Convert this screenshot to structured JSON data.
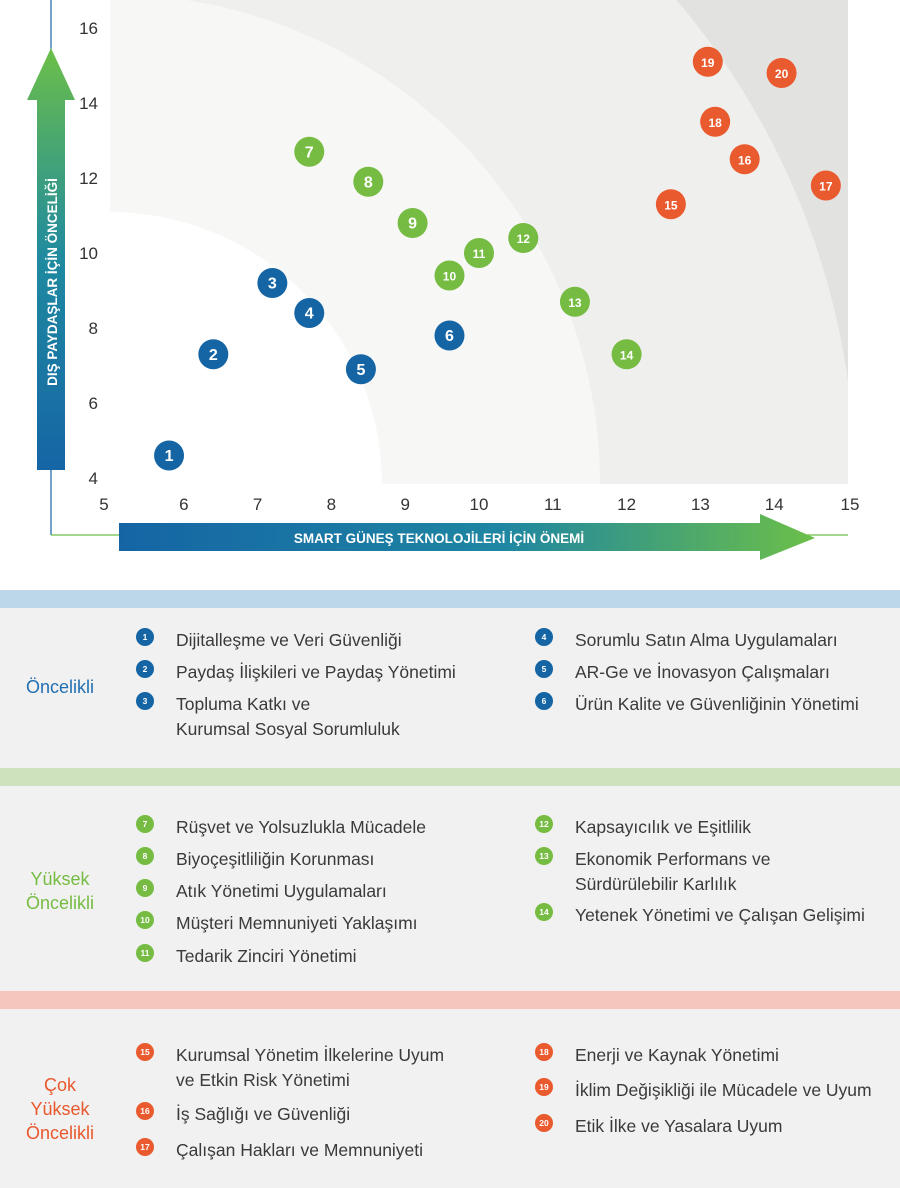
{
  "chart_data": {
    "type": "scatter",
    "xlabel": "SMART GÜNEŞ TEKNOLOJİLERİ İÇİN ÖNEMİ",
    "ylabel": "DIŞ PAYDAŞLAR İÇİN ÖNCELİĞİ",
    "xlim": [
      5,
      15
    ],
    "ylim": [
      4,
      16
    ],
    "x_ticks": [
      "5",
      "6",
      "7",
      "8",
      "9",
      "10",
      "11",
      "12",
      "13",
      "14",
      "15"
    ],
    "y_ticks": [
      "4",
      "6",
      "8",
      "10",
      "12",
      "14",
      "16"
    ],
    "points": [
      {
        "id": "1",
        "x": 5.8,
        "y": 4.6,
        "group": "oncelikli"
      },
      {
        "id": "2",
        "x": 6.4,
        "y": 7.3,
        "group": "oncelikli"
      },
      {
        "id": "3",
        "x": 7.2,
        "y": 9.2,
        "group": "oncelikli"
      },
      {
        "id": "4",
        "x": 7.7,
        "y": 8.4,
        "group": "oncelikli"
      },
      {
        "id": "5",
        "x": 8.4,
        "y": 6.9,
        "group": "oncelikli"
      },
      {
        "id": "6",
        "x": 9.6,
        "y": 7.8,
        "group": "oncelikli"
      },
      {
        "id": "7",
        "x": 7.7,
        "y": 12.7,
        "group": "yuksek"
      },
      {
        "id": "8",
        "x": 8.5,
        "y": 11.9,
        "group": "yuksek"
      },
      {
        "id": "9",
        "x": 9.1,
        "y": 10.8,
        "group": "yuksek"
      },
      {
        "id": "10",
        "x": 9.6,
        "y": 9.4,
        "group": "yuksek"
      },
      {
        "id": "11",
        "x": 10.0,
        "y": 10.0,
        "group": "yuksek"
      },
      {
        "id": "12",
        "x": 10.6,
        "y": 10.4,
        "group": "yuksek"
      },
      {
        "id": "13",
        "x": 11.3,
        "y": 8.7,
        "group": "yuksek"
      },
      {
        "id": "14",
        "x": 12.0,
        "y": 7.3,
        "group": "yuksek"
      },
      {
        "id": "15",
        "x": 12.6,
        "y": 11.3,
        "group": "cok"
      },
      {
        "id": "16",
        "x": 13.6,
        "y": 12.5,
        "group": "cok"
      },
      {
        "id": "17",
        "x": 14.7,
        "y": 11.8,
        "group": "cok"
      },
      {
        "id": "18",
        "x": 13.2,
        "y": 13.5,
        "group": "cok"
      },
      {
        "id": "19",
        "x": 13.1,
        "y": 15.1,
        "group": "cok"
      },
      {
        "id": "20",
        "x": 14.1,
        "y": 14.8,
        "group": "cok"
      }
    ]
  },
  "colors": {
    "oncelikli": "#1565a5",
    "yuksek": "#76bc43",
    "cok": "#ea5a2f",
    "bar_oncelikli": "#bcd7e9",
    "bar_yuksek": "#cfe2be",
    "bar_cok": "#f4c6bd",
    "label_oncelikli": "#1f6fb2",
    "label_yuksek": "#76bc43",
    "label_cok": "#e8582c"
  },
  "legend": {
    "oncelikli": {
      "label": "Öncelikli",
      "left": [
        {
          "num": "1",
          "text": "Dijitalleşme ve Veri Güvenliği"
        },
        {
          "num": "2",
          "text": "Paydaş İlişkileri ve Paydaş Yönetimi"
        },
        {
          "num": "3",
          "text": "Topluma Katkı ve\nKurumsal Sosyal Sorumluluk"
        }
      ],
      "right": [
        {
          "num": "4",
          "text": "Sorumlu Satın Alma Uygulamaları"
        },
        {
          "num": "5",
          "text": "AR-Ge ve İnovasyon Çalışmaları"
        },
        {
          "num": "6",
          "text": "Ürün Kalite ve Güvenliğinin Yönetimi"
        }
      ]
    },
    "yuksek": {
      "label": "Yüksek\nÖncelikli",
      "left": [
        {
          "num": "7",
          "text": "Rüşvet ve Yolsuzlukla Mücadele"
        },
        {
          "num": "8",
          "text": "Biyoçeşitliliğin Korunması"
        },
        {
          "num": "9",
          "text": "Atık Yönetimi Uygulamaları"
        },
        {
          "num": "10",
          "text": "Müşteri Memnuniyeti Yaklaşımı"
        },
        {
          "num": "11",
          "text": "Tedarik Zinciri Yönetimi"
        }
      ],
      "right": [
        {
          "num": "12",
          "text": "Kapsayıcılık ve Eşitlilik"
        },
        {
          "num": "13",
          "text": "Ekonomik Performans ve\nSürdürülebilir Karlılık"
        },
        {
          "num": "14",
          "text": "Yetenek Yönetimi ve Çalışan Gelişimi"
        }
      ]
    },
    "cok": {
      "label": "Çok\nYüksek\nÖncelikli",
      "left": [
        {
          "num": "15",
          "text": "Kurumsal Yönetim İlkelerine Uyum\nve  Etkin Risk Yönetimi"
        },
        {
          "num": "16",
          "text": "İş Sağlığı ve Güvenliği"
        },
        {
          "num": "17",
          "text": "Çalışan Hakları ve Memnuniyeti"
        }
      ],
      "right": [
        {
          "num": "18",
          "text": "Enerji ve Kaynak Yönetimi"
        },
        {
          "num": "19",
          "text": "İklim Değişikliği ile Mücadele ve Uyum"
        },
        {
          "num": "20",
          "text": "Etik İlke ve Yasalara Uyum"
        }
      ]
    }
  }
}
